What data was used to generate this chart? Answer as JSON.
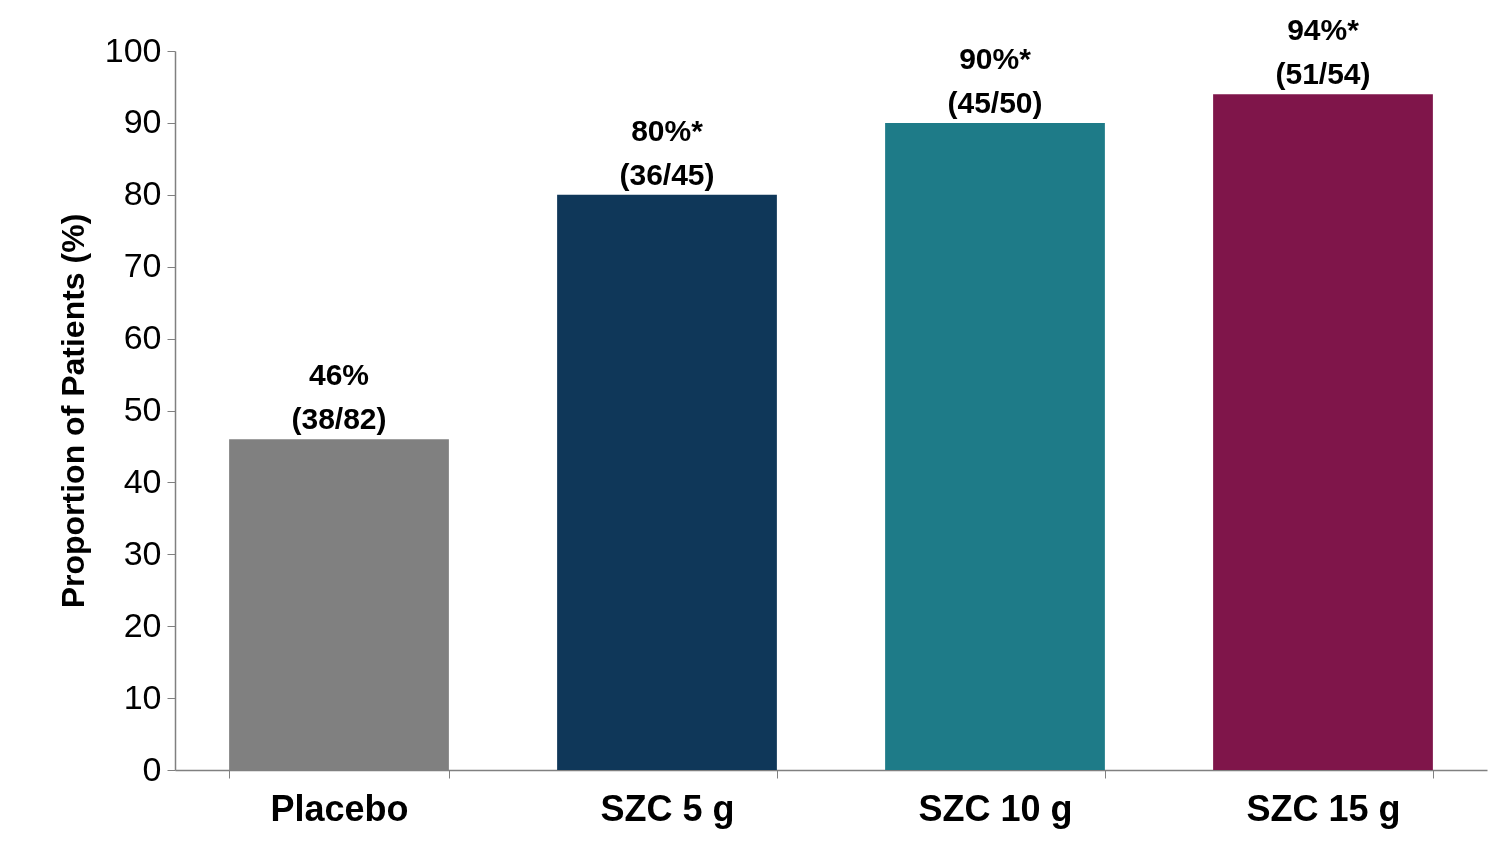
{
  "chart_data": {
    "type": "bar",
    "ylabel": "Proportion of Patients (%)",
    "categories": [
      "Placebo",
      "SZC 5 g",
      "SZC 10 g",
      "SZC 15 g"
    ],
    "values": [
      46,
      80,
      90,
      94
    ],
    "colors": [
      "#808080",
      "#0f3759",
      "#1e7b88",
      "#7f154a"
    ],
    "value_labels": [
      "46%\n(38/82)",
      "80%*\n(36/45)",
      "90%*\n(45/50)",
      "94%*\n(51/54)"
    ],
    "ylim": [
      0,
      100
    ],
    "yticks": [
      0,
      10,
      20,
      30,
      40,
      50,
      60,
      70,
      80,
      90,
      100
    ]
  }
}
